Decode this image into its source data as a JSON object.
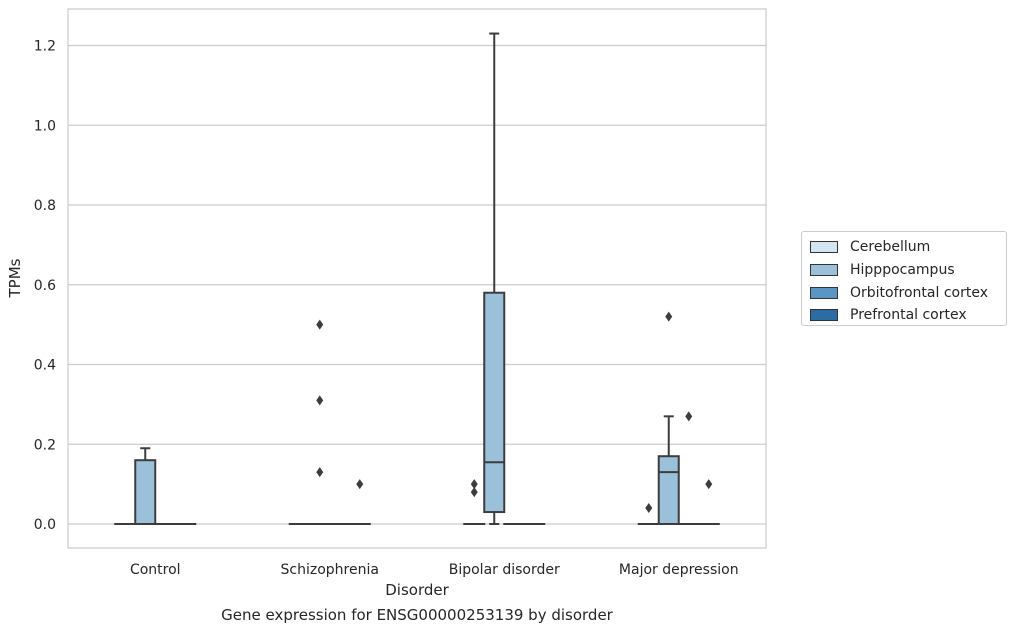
{
  "chart_data": {
    "type": "box",
    "xlabel": "Disorder",
    "ylabel": "TPMs",
    "caption": "Gene expression for ENSG00000253139 by disorder",
    "ylim": [
      -0.06,
      1.29
    ],
    "yticks": [
      "0.0",
      "0.2",
      "0.4",
      "0.6",
      "0.8",
      "1.0",
      "1.2"
    ],
    "grid": true,
    "legend_placement": "center-right",
    "categories": [
      "Control",
      "Schizophrenia",
      "Bipolar disorder",
      "Major depression"
    ],
    "series": [
      {
        "name": "Cerebellum",
        "color": "#d3e4f3",
        "boxes": [
          {
            "q1": 0,
            "median": 0,
            "q3": 0,
            "whisker_low": 0,
            "whisker_high": 0,
            "outliers": []
          },
          {
            "q1": 0,
            "median": 0,
            "q3": 0,
            "whisker_low": 0,
            "whisker_high": 0,
            "outliers": []
          },
          {
            "q1": 0,
            "median": 0,
            "q3": 0,
            "whisker_low": 0,
            "whisker_high": 0,
            "outliers": [
              0.08,
              0.1
            ]
          },
          {
            "q1": 0,
            "median": 0,
            "q3": 0,
            "whisker_low": 0,
            "whisker_high": 0,
            "outliers": [
              0.04
            ]
          }
        ]
      },
      {
        "name": "Hipppocampus",
        "color": "#9ac0da",
        "boxes": [
          {
            "q1": 0,
            "median": 0,
            "q3": 0.16,
            "whisker_low": 0,
            "whisker_high": 0.19,
            "outliers": []
          },
          {
            "q1": 0,
            "median": 0,
            "q3": 0,
            "whisker_low": 0,
            "whisker_high": 0,
            "outliers": [
              0.13,
              0.31,
              0.5
            ]
          },
          {
            "q1": 0.03,
            "median": 0.155,
            "q3": 0.58,
            "whisker_low": 0,
            "whisker_high": 1.23,
            "outliers": []
          },
          {
            "q1": 0,
            "median": 0.13,
            "q3": 0.17,
            "whisker_low": 0,
            "whisker_high": 0.27,
            "outliers": [
              0.52
            ]
          }
        ]
      },
      {
        "name": "Orbitofrontal cortex",
        "color": "#5a96c3",
        "boxes": [
          {
            "q1": 0,
            "median": 0,
            "q3": 0,
            "whisker_low": 0,
            "whisker_high": 0,
            "outliers": []
          },
          {
            "q1": 0,
            "median": 0,
            "q3": 0,
            "whisker_low": 0,
            "whisker_high": 0,
            "outliers": []
          },
          {
            "q1": 0,
            "median": 0,
            "q3": 0,
            "whisker_low": 0,
            "whisker_high": 0,
            "outliers": []
          },
          {
            "q1": 0,
            "median": 0,
            "q3": 0,
            "whisker_low": 0,
            "whisker_high": 0,
            "outliers": [
              0.27
            ]
          }
        ]
      },
      {
        "name": "Prefrontal cortex",
        "color": "#2c6ca4",
        "boxes": [
          {
            "q1": 0,
            "median": 0,
            "q3": 0,
            "whisker_low": 0,
            "whisker_high": 0,
            "outliers": []
          },
          {
            "q1": 0,
            "median": 0,
            "q3": 0,
            "whisker_low": 0,
            "whisker_high": 0,
            "outliers": [
              0.1
            ]
          },
          {
            "q1": 0,
            "median": 0,
            "q3": 0,
            "whisker_low": 0,
            "whisker_high": 0,
            "outliers": []
          },
          {
            "q1": 0,
            "median": 0,
            "q3": 0,
            "whisker_low": 0,
            "whisker_high": 0,
            "outliers": [
              0.1
            ]
          }
        ]
      }
    ]
  }
}
